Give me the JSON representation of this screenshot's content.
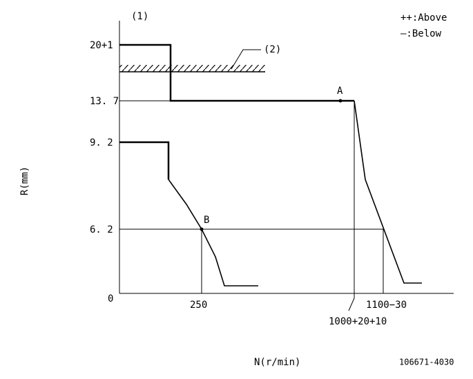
{
  "header": {
    "marker": "(1)",
    "legend": [
      "++:Above",
      "—:Below"
    ]
  },
  "axes": {
    "y_title": "R(mm)",
    "x_title": "N(r/min)",
    "y_labels": [
      "20+1",
      "13. 7",
      "9. 2",
      "6. 2",
      "0"
    ],
    "x_labels": [
      "250",
      "1100−30",
      "1000+20+10"
    ]
  },
  "annotations": {
    "limit": "(2)",
    "point_a": "A",
    "point_b": "B"
  },
  "footer": {
    "code": "106671-4030"
  }
}
